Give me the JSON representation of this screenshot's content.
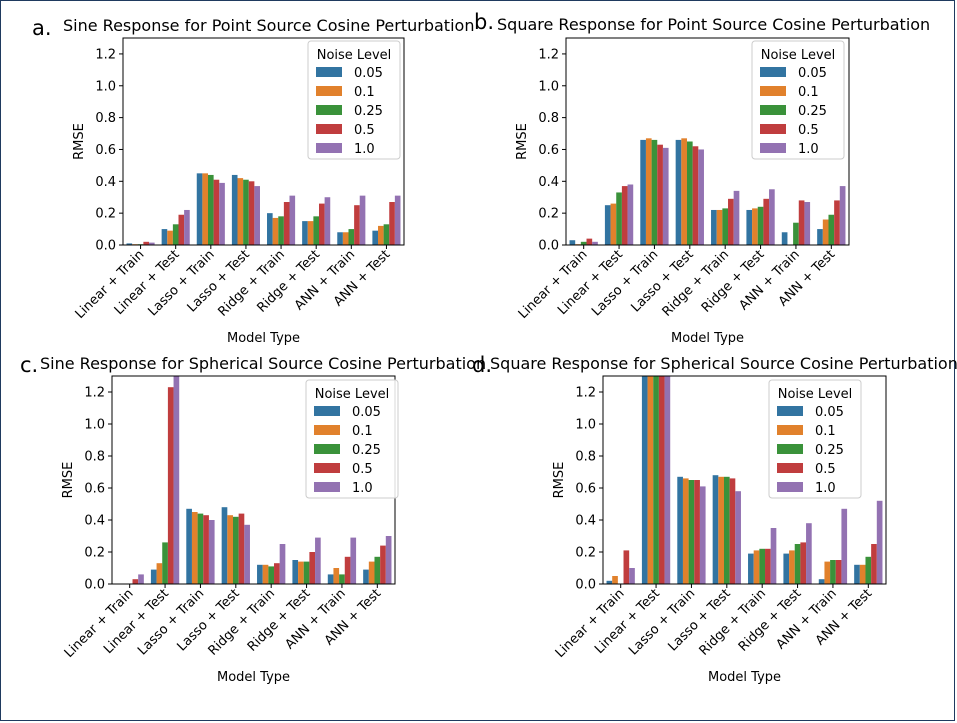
{
  "colors": {
    "series": [
      "#3274a1",
      "#e1812c",
      "#3a923a",
      "#c03d3e",
      "#9372b2"
    ],
    "axis": "#000000"
  },
  "chart_data": [
    {
      "panel": "a.",
      "type": "bar",
      "title": "Sine Response for Point Source Cosine Perturbation",
      "xlabel": "Model Type",
      "ylabel": "RMSE",
      "ylim": [
        0,
        1.3
      ],
      "yticks": [
        "0.0",
        "0.2",
        "0.4",
        "0.6",
        "0.8",
        "1.0",
        "1.2"
      ],
      "legend_title": "Noise Level",
      "legend_position": "top-right",
      "categories": [
        "Linear + Train",
        "Linear + Test",
        "Lasso + Train",
        "Lasso + Test",
        "Ridge + Train",
        "Ridge + Test",
        "ANN + Train",
        "ANN + Test"
      ],
      "series": [
        {
          "name": "0.05",
          "values": [
            0.01,
            0.1,
            0.45,
            0.44,
            0.2,
            0.15,
            0.08,
            0.09
          ]
        },
        {
          "name": "0.1",
          "values": [
            0.005,
            0.09,
            0.45,
            0.42,
            0.17,
            0.15,
            0.08,
            0.12
          ]
        },
        {
          "name": "0.25",
          "values": [
            0.005,
            0.13,
            0.44,
            0.41,
            0.18,
            0.18,
            0.1,
            0.13
          ]
        },
        {
          "name": "0.5",
          "values": [
            0.02,
            0.19,
            0.41,
            0.4,
            0.27,
            0.26,
            0.25,
            0.27
          ]
        },
        {
          "name": "1.0",
          "values": [
            0.015,
            0.22,
            0.39,
            0.37,
            0.31,
            0.3,
            0.31,
            0.31
          ]
        }
      ]
    },
    {
      "panel": "b.",
      "type": "bar",
      "title": "Square Response for Point Source Cosine Perturbation",
      "xlabel": "Model Type",
      "ylabel": "RMSE",
      "ylim": [
        0,
        1.3
      ],
      "yticks": [
        "0.0",
        "0.2",
        "0.4",
        "0.6",
        "0.8",
        "1.0",
        "1.2"
      ],
      "legend_title": "Noise Level",
      "legend_position": "top-right",
      "categories": [
        "Linear + Train",
        "Linear + Test",
        "Lasso + Train",
        "Lasso + Test",
        "Ridge + Train",
        "Ridge + Test",
        "ANN + Train",
        "ANN + Test"
      ],
      "series": [
        {
          "name": "0.05",
          "values": [
            0.03,
            0.25,
            0.66,
            0.66,
            0.22,
            0.22,
            0.08,
            0.1
          ]
        },
        {
          "name": "0.1",
          "values": [
            0.005,
            0.26,
            0.67,
            0.67,
            0.22,
            0.23,
            0.0,
            0.16
          ]
        },
        {
          "name": "0.25",
          "values": [
            0.02,
            0.33,
            0.66,
            0.65,
            0.23,
            0.24,
            0.14,
            0.19
          ]
        },
        {
          "name": "0.5",
          "values": [
            0.04,
            0.37,
            0.63,
            0.62,
            0.29,
            0.29,
            0.28,
            0.28
          ]
        },
        {
          "name": "1.0",
          "values": [
            0.02,
            0.38,
            0.61,
            0.6,
            0.34,
            0.35,
            0.27,
            0.37
          ]
        }
      ]
    },
    {
      "panel": "c.",
      "type": "bar",
      "title": "Sine Response for Spherical Source Cosine Perturbation",
      "xlabel": "Model Type",
      "ylabel": "RMSE",
      "ylim": [
        0,
        1.3
      ],
      "yticks": [
        "0.0",
        "0.2",
        "0.4",
        "0.6",
        "0.8",
        "1.0",
        "1.2"
      ],
      "legend_title": "Noise Level",
      "legend_position": "top-right",
      "categories": [
        "Linear + Train",
        "Linear + Test",
        "Lasso + Train",
        "Lasso + Test",
        "Ridge + Train",
        "Ridge + Test",
        "ANN + Train",
        "ANN + Test"
      ],
      "series": [
        {
          "name": "0.05",
          "values": [
            0.0,
            0.09,
            0.47,
            0.48,
            0.12,
            0.15,
            0.06,
            0.09
          ]
        },
        {
          "name": "0.1",
          "values": [
            0.0,
            0.13,
            0.45,
            0.43,
            0.12,
            0.14,
            0.1,
            0.14
          ]
        },
        {
          "name": "0.25",
          "values": [
            0.0,
            0.26,
            0.44,
            0.42,
            0.11,
            0.14,
            0.06,
            0.17
          ]
        },
        {
          "name": "0.5",
          "values": [
            0.03,
            1.23,
            0.43,
            0.44,
            0.13,
            0.2,
            0.17,
            0.24
          ]
        },
        {
          "name": "1.0",
          "values": [
            0.06,
            1.35,
            0.4,
            0.37,
            0.25,
            0.29,
            0.29,
            0.3
          ]
        }
      ]
    },
    {
      "panel": "d.",
      "type": "bar",
      "title": "Square Response for Spherical Source Cosine Perturbation",
      "xlabel": "Model Type",
      "ylabel": "RMSE",
      "ylim": [
        0,
        1.3
      ],
      "yticks": [
        "0.0",
        "0.2",
        "0.4",
        "0.6",
        "0.8",
        "1.0",
        "1.2"
      ],
      "legend_title": "Noise Level",
      "legend_position": "top-right",
      "categories": [
        "Linear + Train",
        "Linear + Test",
        "Lasso + Train",
        "Lasso + Test",
        "Ridge + Train",
        "Ridge + Test",
        "ANN + Train",
        "ANN + Test"
      ],
      "series": [
        {
          "name": "0.05",
          "values": [
            0.02,
            1.35,
            0.67,
            0.68,
            0.19,
            0.19,
            0.03,
            0.12
          ]
        },
        {
          "name": "0.1",
          "values": [
            0.05,
            1.35,
            0.66,
            0.67,
            0.21,
            0.21,
            0.14,
            0.12
          ]
        },
        {
          "name": "0.25",
          "values": [
            0.0,
            1.35,
            0.65,
            0.67,
            0.22,
            0.25,
            0.15,
            0.17
          ]
        },
        {
          "name": "0.5",
          "values": [
            0.21,
            1.35,
            0.65,
            0.66,
            0.22,
            0.26,
            0.15,
            0.25
          ]
        },
        {
          "name": "1.0",
          "values": [
            0.1,
            1.35,
            0.61,
            0.58,
            0.35,
            0.38,
            0.47,
            0.52
          ]
        }
      ]
    }
  ]
}
